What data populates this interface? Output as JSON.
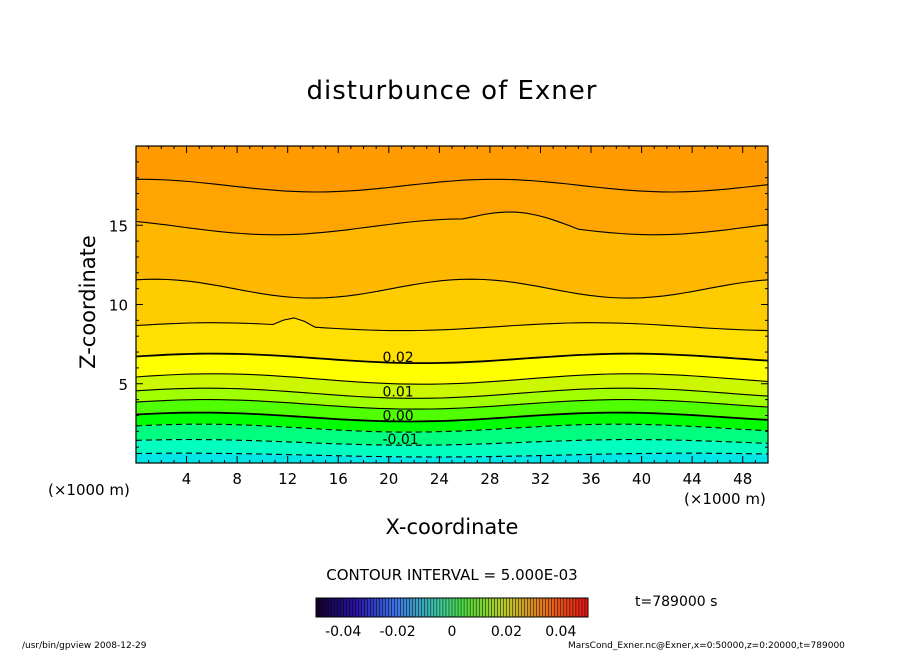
{
  "chart_data": {
    "type": "contour",
    "title": "disturbunce of Exner",
    "xlabel": "X-coordinate",
    "ylabel": "Z-coordinate",
    "x_unit": "(×1000 m)",
    "z_unit": "(×1000 m)",
    "xlim": [
      0,
      50
    ],
    "ylim": [
      0,
      20
    ],
    "x_ticks": [
      "4",
      "8",
      "12",
      "16",
      "20",
      "24",
      "28",
      "32",
      "36",
      "40",
      "44",
      "48"
    ],
    "y_ticks": [
      "5",
      "10",
      "15"
    ],
    "x_tick_values": [
      4,
      8,
      12,
      16,
      20,
      24,
      28,
      32,
      36,
      40,
      44,
      48
    ],
    "y_tick_values": [
      5,
      10,
      15
    ],
    "contour_interval": "CONTOUR INTERVAL = 5.000E-03",
    "contour_labels": [
      {
        "text": "0.02",
        "x": 19.5,
        "z": 6.7
      },
      {
        "text": "0.01",
        "x": 19.5,
        "z": 4.5
      },
      {
        "text": "0.00",
        "x": 19.5,
        "z": 3.0
      },
      {
        "text": "-0.01",
        "x": 19.5,
        "z": 1.5
      }
    ],
    "colorbar_ticks": [
      "-0.04",
      "-0.02",
      "0",
      "0.02",
      "0.04"
    ],
    "colorbar_range": [
      -0.05,
      0.05
    ],
    "fill_colors": [
      "#00e5e5",
      "#00ffc0",
      "#00ff80",
      "#00ff00",
      "#50ff00",
      "#a0ff00",
      "#ccf700",
      "#ffff00",
      "#ffe000",
      "#ffcc00",
      "#ffb800",
      "#ffa400",
      "#ff9a00"
    ]
  },
  "annotations": {
    "time": "t=789000 s",
    "footer_left": "/usr/bin/gpview   2008-12-29",
    "footer_right": "MarsCond_Exner.nc@Exner,x=0:50000,z=0:20000,t=789000"
  }
}
